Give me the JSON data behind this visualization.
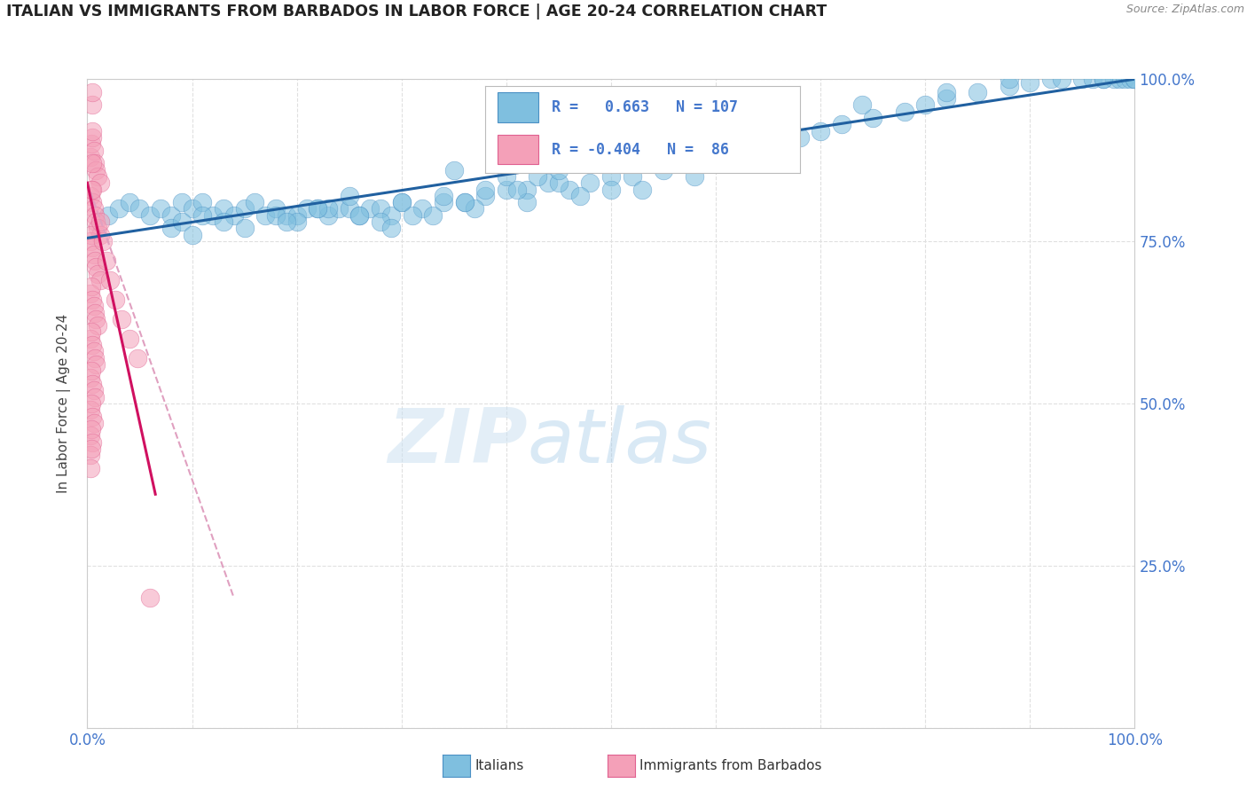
{
  "title": "ITALIAN VS IMMIGRANTS FROM BARBADOS IN LABOR FORCE | AGE 20-24 CORRELATION CHART",
  "source_text": "Source: ZipAtlas.com",
  "ylabel": "In Labor Force | Age 20-24",
  "watermark_zip": "ZIP",
  "watermark_atlas": "atlas",
  "xlim": [
    0.0,
    1.0
  ],
  "ylim": [
    0.0,
    1.0
  ],
  "x_ticks": [
    0.0,
    0.1,
    0.2,
    0.3,
    0.4,
    0.5,
    0.6,
    0.7,
    0.8,
    0.9,
    1.0
  ],
  "y_ticks": [
    0.0,
    0.25,
    0.5,
    0.75,
    1.0
  ],
  "blue_R": 0.663,
  "blue_N": 107,
  "pink_R": -0.404,
  "pink_N": 86,
  "blue_color": "#7fbfdf",
  "pink_color": "#f4a0b8",
  "blue_edge_color": "#4a90c4",
  "pink_edge_color": "#e06090",
  "blue_line_color": "#2060a0",
  "pink_line_color": "#d01060",
  "pink_dash_color": "#e0a0c0",
  "legend_blue_label": "Italians",
  "legend_pink_label": "Immigrants from Barbados",
  "title_color": "#222222",
  "source_color": "#888888",
  "grid_color": "#e0e0e0",
  "axis_label_color": "#4477cc",
  "blue_scatter_x": [
    0.02,
    0.03,
    0.04,
    0.05,
    0.06,
    0.07,
    0.08,
    0.09,
    0.1,
    0.11,
    0.12,
    0.13,
    0.14,
    0.15,
    0.16,
    0.17,
    0.18,
    0.19,
    0.2,
    0.21,
    0.22,
    0.23,
    0.24,
    0.25,
    0.26,
    0.27,
    0.28,
    0.29,
    0.3,
    0.32,
    0.34,
    0.36,
    0.38,
    0.4,
    0.42,
    0.44,
    0.46,
    0.48,
    0.5,
    0.52,
    0.55,
    0.57,
    0.6,
    0.62,
    0.65,
    0.68,
    0.7,
    0.72,
    0.75,
    0.78,
    0.8,
    0.82,
    0.85,
    0.88,
    0.9,
    0.92,
    0.95,
    0.96,
    0.97,
    0.98,
    0.985,
    0.99,
    0.995,
    1.0,
    0.08,
    0.09,
    0.1,
    0.11,
    0.13,
    0.15,
    0.18,
    0.2,
    0.23,
    0.26,
    0.3,
    0.34,
    0.38,
    0.43,
    0.48,
    0.54,
    0.6,
    0.67,
    0.74,
    0.82,
    0.88,
    0.93,
    0.97,
    1.0,
    0.35,
    0.4,
    0.45,
    0.5,
    0.33,
    0.37,
    0.42,
    0.47,
    0.53,
    0.58,
    0.28,
    0.31,
    0.36,
    0.41,
    0.29,
    0.45,
    0.22,
    0.25,
    0.19
  ],
  "blue_scatter_y": [
    0.79,
    0.8,
    0.81,
    0.8,
    0.79,
    0.8,
    0.79,
    0.81,
    0.8,
    0.81,
    0.79,
    0.8,
    0.79,
    0.8,
    0.81,
    0.79,
    0.8,
    0.79,
    0.79,
    0.8,
    0.8,
    0.79,
    0.8,
    0.8,
    0.79,
    0.8,
    0.8,
    0.79,
    0.81,
    0.8,
    0.81,
    0.81,
    0.82,
    0.83,
    0.83,
    0.84,
    0.83,
    0.84,
    0.85,
    0.85,
    0.86,
    0.87,
    0.88,
    0.89,
    0.9,
    0.91,
    0.92,
    0.93,
    0.94,
    0.95,
    0.96,
    0.97,
    0.98,
    0.99,
    0.995,
    1.0,
    1.0,
    1.0,
    1.0,
    1.0,
    1.0,
    1.0,
    1.0,
    1.0,
    0.77,
    0.78,
    0.76,
    0.79,
    0.78,
    0.77,
    0.79,
    0.78,
    0.8,
    0.79,
    0.81,
    0.82,
    0.83,
    0.85,
    0.87,
    0.89,
    0.91,
    0.93,
    0.96,
    0.98,
    1.0,
    1.0,
    1.0,
    1.0,
    0.86,
    0.85,
    0.84,
    0.83,
    0.79,
    0.8,
    0.81,
    0.82,
    0.83,
    0.85,
    0.78,
    0.79,
    0.81,
    0.83,
    0.77,
    0.86,
    0.8,
    0.82,
    0.78
  ],
  "pink_scatter_x": [
    0.003,
    0.004,
    0.005,
    0.006,
    0.007,
    0.008,
    0.01,
    0.012,
    0.003,
    0.004,
    0.005,
    0.006,
    0.007,
    0.008,
    0.01,
    0.012,
    0.003,
    0.004,
    0.005,
    0.006,
    0.007,
    0.008,
    0.01,
    0.012,
    0.003,
    0.004,
    0.005,
    0.006,
    0.007,
    0.008,
    0.01,
    0.003,
    0.004,
    0.005,
    0.006,
    0.007,
    0.008,
    0.003,
    0.004,
    0.005,
    0.006,
    0.007,
    0.003,
    0.004,
    0.005,
    0.006,
    0.003,
    0.004,
    0.005,
    0.003,
    0.004,
    0.003,
    0.012,
    0.015,
    0.018,
    0.022,
    0.027,
    0.033,
    0.04,
    0.048,
    0.005,
    0.005,
    0.005,
    0.005,
    0.005,
    0.06
  ],
  "pink_scatter_y": [
    0.88,
    0.9,
    0.91,
    0.89,
    0.87,
    0.86,
    0.85,
    0.84,
    0.82,
    0.83,
    0.81,
    0.8,
    0.79,
    0.78,
    0.77,
    0.76,
    0.75,
    0.76,
    0.74,
    0.73,
    0.72,
    0.71,
    0.7,
    0.69,
    0.67,
    0.68,
    0.66,
    0.65,
    0.64,
    0.63,
    0.62,
    0.6,
    0.61,
    0.59,
    0.58,
    0.57,
    0.56,
    0.54,
    0.55,
    0.53,
    0.52,
    0.51,
    0.49,
    0.5,
    0.48,
    0.47,
    0.45,
    0.46,
    0.44,
    0.42,
    0.43,
    0.4,
    0.78,
    0.75,
    0.72,
    0.69,
    0.66,
    0.63,
    0.6,
    0.57,
    0.92,
    0.87,
    0.83,
    0.96,
    0.98,
    0.2
  ],
  "blue_trend_x": [
    0.0,
    1.0
  ],
  "blue_trend_y": [
    0.755,
    1.0
  ],
  "pink_trend_x": [
    0.0,
    0.065
  ],
  "pink_trend_y": [
    0.84,
    0.36
  ],
  "pink_dash_trend_x": [
    0.0,
    0.14
  ],
  "pink_dash_trend_y": [
    0.84,
    0.2
  ]
}
